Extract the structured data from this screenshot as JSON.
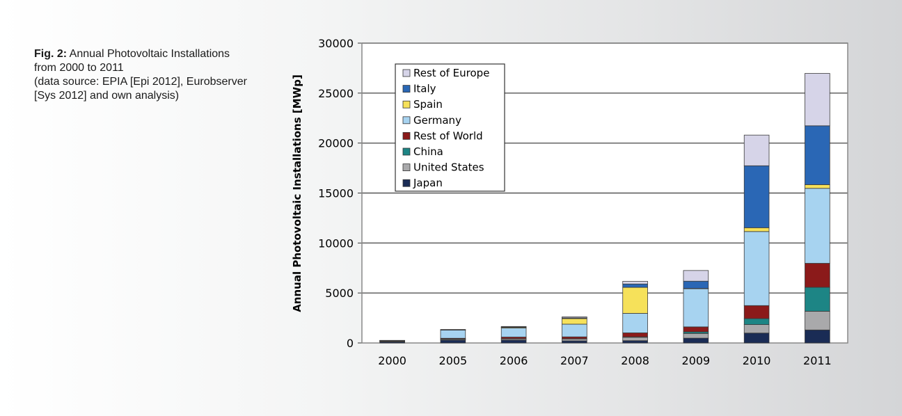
{
  "caption": {
    "label": "Fig. 2:",
    "line1": "Annual Photovoltaic Installations",
    "line2": "from 2000 to 2011",
    "line3": "(data source: EPIA [Epi 2012], Eurobserver",
    "line4": "[Sys 2012] and own analysis)"
  },
  "chart_data": {
    "type": "bar",
    "stacked": true,
    "ylabel": "Annual Photovoltaic Installations [MWp]",
    "xlabel": "",
    "ylim": [
      0,
      30000
    ],
    "yticks": [
      0,
      5000,
      10000,
      15000,
      20000,
      25000,
      30000
    ],
    "grid": true,
    "legend_position": "top-left",
    "categories": [
      "2000",
      "2005",
      "2006",
      "2007",
      "2008",
      "2009",
      "2010",
      "2011"
    ],
    "series": [
      {
        "name": "Japan",
        "color": "#1a2c55",
        "values": [
          120,
          290,
          290,
          210,
          230,
          480,
          990,
          1300
        ]
      },
      {
        "name": "United States",
        "color": "#a9a9ab",
        "values": [
          20,
          100,
          140,
          200,
          340,
          470,
          850,
          1870
        ]
      },
      {
        "name": "China",
        "color": "#1d8585",
        "values": [
          10,
          10,
          10,
          20,
          40,
          160,
          600,
          2400
        ]
      },
      {
        "name": "Rest of World",
        "color": "#8b1a1a",
        "values": [
          70,
          70,
          150,
          180,
          400,
          500,
          1300,
          2400
        ]
      },
      {
        "name": "Germany",
        "color": "#a7d3f0",
        "values": [
          20,
          830,
          900,
          1270,
          1950,
          3830,
          7410,
          7500
        ]
      },
      {
        "name": "Spain",
        "color": "#f6e15a",
        "values": [
          5,
          20,
          90,
          560,
          2600,
          20,
          380,
          370
        ]
      },
      {
        "name": "Italy",
        "color": "#2a67b5",
        "values": [
          5,
          5,
          10,
          70,
          340,
          720,
          6200,
          5890
        ]
      },
      {
        "name": "Rest of Europe",
        "color": "#d6d4e8",
        "values": [
          10,
          25,
          60,
          100,
          270,
          1070,
          3070,
          5240
        ]
      }
    ]
  }
}
